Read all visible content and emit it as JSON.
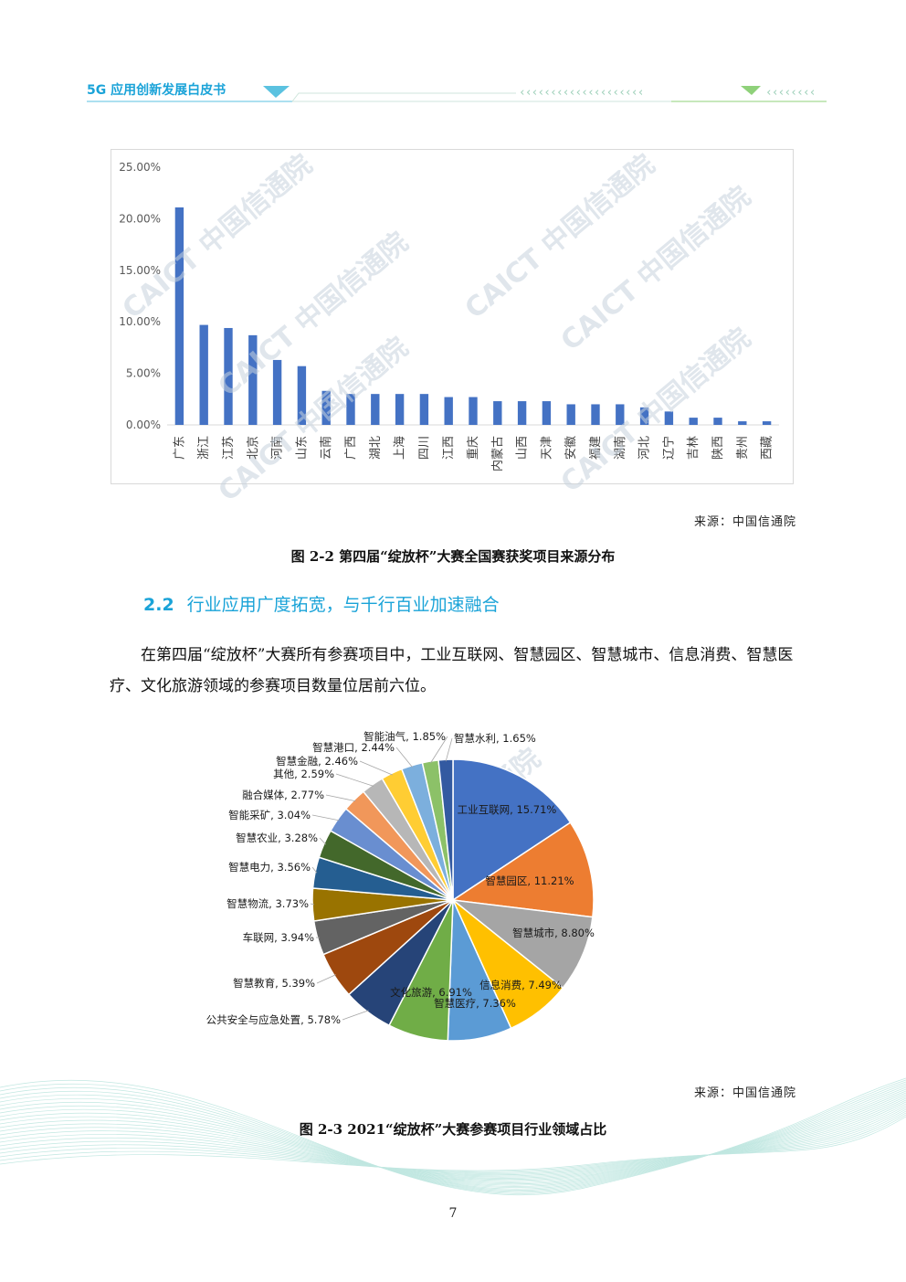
{
  "header": {
    "title": "5G 应用创新发展白皮书",
    "chevrons_left": "‹‹‹‹‹‹‹‹‹‹‹‹‹‹‹‹‹‹‹‹",
    "chevrons_right": "‹‹‹‹‹‹‹‹",
    "accent_color": "#1aa3d8"
  },
  "watermark": "CAICT 中国信通院",
  "figure1": {
    "source": "来源：中国信通院",
    "caption": "图 2-2  第四届“绽放杯”大赛全国赛获奖项目来源分布",
    "chart_data": {
      "type": "bar",
      "bar_color": "#4472c4",
      "ylim": [
        0,
        25
      ],
      "y_tick_values": [
        0,
        5,
        10,
        15,
        20,
        25
      ],
      "y_ticks": [
        "0.00%",
        "5.00%",
        "10.00%",
        "15.00%",
        "20.00%",
        "25.00%"
      ],
      "categories": [
        "广东",
        "浙江",
        "江苏",
        "北京",
        "河南",
        "山东",
        "云南",
        "广西",
        "湖北",
        "上海",
        "四川",
        "江西",
        "重庆",
        "内蒙古",
        "山西",
        "天津",
        "安徽",
        "福建",
        "湖南",
        "河北",
        "辽宁",
        "吉林",
        "陕西",
        "贵州",
        "西藏"
      ],
      "values": [
        21.1,
        9.7,
        9.4,
        8.7,
        6.3,
        5.7,
        3.3,
        3.0,
        3.0,
        3.0,
        3.0,
        2.7,
        2.7,
        2.3,
        2.3,
        2.3,
        2.0,
        2.0,
        2.0,
        1.7,
        1.3,
        0.7,
        0.7,
        0.35,
        0.35
      ]
    }
  },
  "section": {
    "number": "2.2",
    "title": "行业应用广度拓宽，与千行百业加速融合"
  },
  "paragraph": "在第四届“绽放杯”大赛所有参赛项目中，工业互联网、智慧园区、智慧城市、信息消费、智慧医疗、文化旅游领域的参赛项目数量位居前六位。",
  "figure2": {
    "source": "来源：中国信通院",
    "caption": "图 2-3 2021“绽放杯”大赛参赛项目行业领域占比",
    "chart_data": {
      "type": "pie",
      "slices": [
        {
          "label": "工业互联网, 15.71%",
          "value": 15.71,
          "color": "#4472c4"
        },
        {
          "label": "智慧园区, 11.21%",
          "value": 11.21,
          "color": "#ed7d31"
        },
        {
          "label": "智慧城市, 8.80%",
          "value": 8.8,
          "color": "#a5a5a5"
        },
        {
          "label": "信息消费, 7.49%",
          "value": 7.49,
          "color": "#ffc000"
        },
        {
          "label": "智慧医疗, 7.36%",
          "value": 7.36,
          "color": "#5b9bd5"
        },
        {
          "label": "文化旅游, 6.91%",
          "value": 6.91,
          "color": "#70ad47"
        },
        {
          "label": "公共安全与应急处置, 5.78%",
          "value": 5.78,
          "color": "#264478"
        },
        {
          "label": "智慧教育, 5.39%",
          "value": 5.39,
          "color": "#9e480e"
        },
        {
          "label": "车联网, 3.94%",
          "value": 3.94,
          "color": "#636363"
        },
        {
          "label": "智慧物流, 3.73%",
          "value": 3.73,
          "color": "#997300"
        },
        {
          "label": "智慧电力, 3.56%",
          "value": 3.56,
          "color": "#255e91"
        },
        {
          "label": "智慧农业, 3.28%",
          "value": 3.28,
          "color": "#43682b"
        },
        {
          "label": "智能采矿, 3.04%",
          "value": 3.04,
          "color": "#698ed0"
        },
        {
          "label": "融合媒体, 2.77%",
          "value": 2.77,
          "color": "#f1975a"
        },
        {
          "label": "其他, 2.59%",
          "value": 2.59,
          "color": "#b7b7b7"
        },
        {
          "label": "智慧金融, 2.46%",
          "value": 2.46,
          "color": "#ffcd33"
        },
        {
          "label": "智慧港口, 2.44%",
          "value": 2.44,
          "color": "#7cafdd"
        },
        {
          "label": "智能油气, 1.85%",
          "value": 1.85,
          "color": "#8cc168"
        },
        {
          "label": "智慧水利, 1.65%",
          "value": 1.65,
          "color": "#335aa1"
        }
      ]
    }
  },
  "page_number": "7"
}
